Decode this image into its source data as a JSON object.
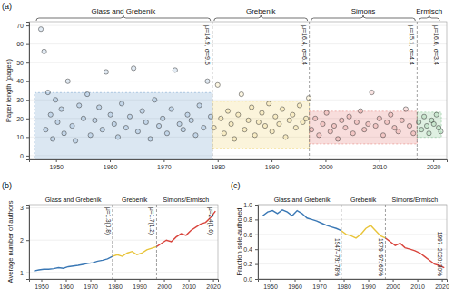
{
  "chart_data": [
    {
      "type": "scatter",
      "panel": "(a)",
      "y_label": "Paper length (pages)",
      "xlim": [
        1945,
        2022.5
      ],
      "xticks": [
        1950,
        1960,
        1970,
        1980,
        1990,
        2000,
        2010,
        2020
      ],
      "ylim": [
        -2,
        72
      ],
      "yticks": [
        0,
        10,
        20,
        30,
        40,
        50,
        60,
        70
      ],
      "series": [
        {
          "name": "Glass and Grebenik",
          "color": "#3a78b5",
          "period": [
            1946,
            1979
          ],
          "band": [
            -4.1,
            33.9
          ],
          "annotation": "μ=14.9, σ=9.5",
          "x": [
            1947.2,
            1947.8,
            1948.1,
            1948.5,
            1949.0,
            1949.4,
            1949.9,
            1950.3,
            1951.0,
            1951.5,
            1952.2,
            1953.0,
            1953.6,
            1954.3,
            1955.1,
            1955.8,
            1956.4,
            1957.2,
            1958.0,
            1958.6,
            1959.3,
            1960.1,
            1960.8,
            1961.5,
            1962.2,
            1963.0,
            1963.7,
            1964.4,
            1965.2,
            1966.0,
            1966.7,
            1967.5,
            1968.3,
            1969.1,
            1969.8,
            1970.6,
            1971.4,
            1972.1,
            1972.9,
            1973.6,
            1974.4,
            1975.1,
            1975.9,
            1976.6,
            1977.4,
            1978.1,
            1978.7
          ],
          "values": [
            68,
            56,
            14,
            34,
            22,
            9,
            30,
            18,
            25,
            12,
            40,
            16,
            8,
            27,
            20,
            33,
            11,
            19,
            26,
            14,
            45,
            22,
            17,
            10,
            28,
            15,
            21,
            47,
            13,
            24,
            18,
            9,
            30,
            16,
            20,
            12,
            25,
            46,
            17,
            14,
            22,
            19,
            11,
            27,
            15,
            40,
            21
          ]
        },
        {
          "name": "Grebenik",
          "color": "#e8c43a",
          "period": [
            1979,
            1997
          ],
          "band": [
            3.6,
            29.2
          ],
          "annotation": "μ=16.4, σ=6.4",
          "x": [
            1979.3,
            1980.0,
            1980.6,
            1981.2,
            1981.9,
            1982.5,
            1983.1,
            1983.8,
            1984.4,
            1985.0,
            1985.7,
            1986.3,
            1986.9,
            1987.6,
            1988.2,
            1988.8,
            1989.5,
            1990.1,
            1990.7,
            1991.4,
            1992.0,
            1992.6,
            1993.3,
            1993.9,
            1994.5,
            1995.2,
            1995.8,
            1996.4,
            1996.9
          ],
          "values": [
            15,
            38,
            20,
            12,
            24,
            17,
            9,
            22,
            33,
            14,
            19,
            26,
            11,
            18,
            23,
            16,
            28,
            13,
            21,
            17,
            25,
            10,
            19,
            22,
            15,
            27,
            18,
            20,
            31
          ]
        },
        {
          "name": "Simons",
          "color": "#d9453d",
          "period": [
            1997,
            2017
          ],
          "band": [
            6.3,
            23.9
          ],
          "annotation": "μ=15.1, σ=4.4",
          "x": [
            1997.4,
            1998.1,
            1998.8,
            1999.5,
            2000.2,
            2000.9,
            2001.6,
            2002.3,
            2003.0,
            2003.7,
            2004.4,
            2005.1,
            2005.8,
            2006.5,
            2007.2,
            2007.9,
            2008.6,
            2009.3,
            2010.0,
            2010.7,
            2011.4,
            2012.1,
            2012.8,
            2013.5,
            2014.2,
            2014.9,
            2015.6,
            2016.3
          ],
          "values": [
            14,
            20,
            11,
            17,
            23,
            13,
            16,
            9,
            19,
            15,
            21,
            12,
            18,
            24,
            14,
            17,
            34,
            16,
            20,
            11,
            18,
            22,
            15,
            13,
            19,
            25,
            16,
            12
          ]
        },
        {
          "name": "Ermisch",
          "color": "#4dac5e",
          "period": [
            2017,
            2021.5
          ],
          "band": [
            9.8,
            23.4
          ],
          "annotation": "μ=16.6, σ=3.4",
          "x": [
            2017.3,
            2017.8,
            2018.3,
            2018.8,
            2019.2,
            2019.7,
            2020.1,
            2020.6,
            2021.0,
            2021.4
          ],
          "values": [
            18,
            14,
            21,
            16,
            12,
            19,
            17,
            22,
            15,
            13
          ]
        }
      ]
    },
    {
      "type": "line",
      "panel": "(b)",
      "y_label": "Average number of authors",
      "xlim": [
        1945,
        2022
      ],
      "xticks": [
        1950,
        1960,
        1970,
        1980,
        1990,
        2000,
        2010,
        2020
      ],
      "ylim": [
        0.8,
        3.1
      ],
      "yticks": [
        1,
        2,
        3
      ],
      "series": [
        {
          "name": "Glass and Grebenik",
          "color": "#3a78b5",
          "annotation": "μ=1.3(0.8)",
          "x": [
            1947,
            1949,
            1951,
            1953,
            1955,
            1957,
            1959,
            1961,
            1963,
            1965,
            1967,
            1969,
            1971,
            1973,
            1975,
            1977,
            1979
          ],
          "values": [
            1.05,
            1.08,
            1.1,
            1.1,
            1.12,
            1.15,
            1.13,
            1.18,
            1.2,
            1.22,
            1.25,
            1.28,
            1.3,
            1.35,
            1.38,
            1.42,
            1.5
          ]
        },
        {
          "name": "Grebenik",
          "color": "#e8c43a",
          "annotation": "μ=1.7(1.2)",
          "x": [
            1979,
            1981,
            1983,
            1985,
            1987,
            1989,
            1991,
            1993,
            1995,
            1997
          ],
          "values": [
            1.5,
            1.55,
            1.5,
            1.6,
            1.65,
            1.55,
            1.6,
            1.7,
            1.75,
            1.8
          ]
        },
        {
          "name": "Simons/Ermisch",
          "color": "#d9453d",
          "annotation": "μ=2.4(1.6)",
          "x": [
            1997,
            1999,
            2001,
            2003,
            2005,
            2007,
            2009,
            2011,
            2013,
            2015,
            2017,
            2019,
            2021
          ],
          "values": [
            1.8,
            1.9,
            2.0,
            1.95,
            2.1,
            2.2,
            2.15,
            2.3,
            2.4,
            2.5,
            2.55,
            2.7,
            2.9
          ]
        }
      ]
    },
    {
      "type": "line",
      "panel": "(c)",
      "y_label": "Fraction sole-authored",
      "xlim": [
        1945,
        2022
      ],
      "xticks": [
        1950,
        1960,
        1970,
        1980,
        1990,
        2000,
        2010,
        2020
      ],
      "ylim": [
        0,
        1
      ],
      "yticks": [
        {
          "value": 0,
          "label": "0.0"
        },
        0.2,
        0.4,
        0.6,
        0.8,
        {
          "value": 1,
          "label": "1.0"
        }
      ],
      "series": [
        {
          "name": "Glass and Grebenik",
          "color": "#3a78b5",
          "annotation": "1947–79: 78%",
          "x": [
            1947,
            1949,
            1951,
            1953,
            1955,
            1957,
            1959,
            1961,
            1963,
            1965,
            1967,
            1969,
            1971,
            1973,
            1975,
            1977,
            1979
          ],
          "values": [
            0.85,
            0.9,
            0.92,
            0.88,
            0.93,
            0.9,
            0.85,
            0.92,
            0.88,
            0.82,
            0.8,
            0.78,
            0.75,
            0.72,
            0.7,
            0.68,
            0.65
          ]
        },
        {
          "name": "Grebenik",
          "color": "#e8c43a",
          "annotation": "1979–97: 60%",
          "x": [
            1979,
            1981,
            1983,
            1985,
            1987,
            1989,
            1991,
            1993,
            1995,
            1997
          ],
          "values": [
            0.65,
            0.6,
            0.58,
            0.55,
            0.6,
            0.68,
            0.72,
            0.65,
            0.58,
            0.55
          ]
        },
        {
          "name": "Simons/Ermisch",
          "color": "#d9453d",
          "annotation": "1997–2020: 30%",
          "x": [
            1997,
            1999,
            2001,
            2003,
            2005,
            2007,
            2009,
            2011,
            2013,
            2015,
            2017,
            2019,
            2021
          ],
          "values": [
            0.55,
            0.5,
            0.45,
            0.48,
            0.42,
            0.4,
            0.38,
            0.35,
            0.3,
            0.25,
            0.2,
            0.18,
            0.15
          ]
        }
      ]
    }
  ]
}
